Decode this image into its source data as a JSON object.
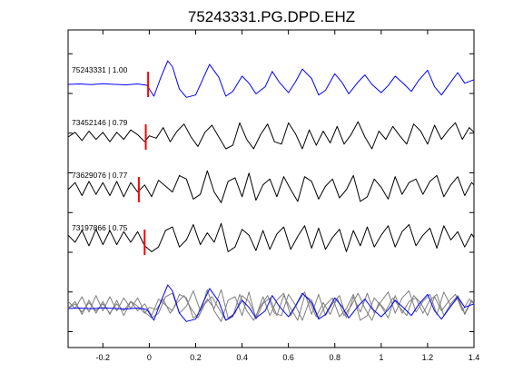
{
  "chart_data": {
    "type": "line",
    "title": "75243331.PG.DPD.EHZ",
    "xlabel": "",
    "ylabel": "",
    "xlim": [
      -0.35,
      1.4
    ],
    "xticks": [
      -0.2,
      0,
      0.2,
      0.4,
      0.6,
      0.8,
      1,
      1.2,
      1.4
    ],
    "xtick_labels": [
      "-0.2",
      "0",
      "0.2",
      "0.4",
      "0.6",
      "0.8",
      "1",
      "1.2",
      "1.4"
    ],
    "grid": false,
    "traces": [
      {
        "label": "75243331 | 1.00",
        "pick_time": -0.005,
        "color": "#0000ff",
        "description_values": {
          "x": [
            -0.35,
            -0.3,
            -0.25,
            -0.2,
            -0.15,
            -0.1,
            -0.05,
            -0.01,
            0.02,
            0.05,
            0.08,
            0.1,
            0.13,
            0.16,
            0.2,
            0.23,
            0.26,
            0.3,
            0.33,
            0.36,
            0.4,
            0.43,
            0.46,
            0.5,
            0.53,
            0.56,
            0.6,
            0.63,
            0.66,
            0.7,
            0.73,
            0.76,
            0.8,
            0.83,
            0.86,
            0.9,
            0.93,
            0.96,
            1.0,
            1.03,
            1.06,
            1.1,
            1.13,
            1.16,
            1.2,
            1.23,
            1.26,
            1.3,
            1.33,
            1.36,
            1.4
          ],
          "y": [
            0,
            0.02,
            -0.01,
            0.03,
            0,
            -0.02,
            0.02,
            -0.04,
            -0.5,
            0.3,
            1.0,
            0.75,
            -0.2,
            -0.55,
            -0.45,
            0.2,
            0.85,
            0.3,
            -0.5,
            -0.3,
            0.35,
            0.05,
            -0.4,
            -0.1,
            0.55,
            0.1,
            -0.35,
            0.1,
            0.65,
            0.25,
            -0.45,
            -0.25,
            0.45,
            0.1,
            -0.4,
            0.1,
            0.4,
            0.0,
            -0.35,
            -0.05,
            0.35,
            0.0,
            -0.3,
            0.15,
            0.6,
            -0.1,
            -0.45,
            0.1,
            0.5,
            0.05,
            0.2
          ]
        }
      },
      {
        "label": "73452146 | 0.79",
        "pick_time": -0.015,
        "color": "#000000",
        "description_values": {
          "x": [
            -0.35,
            -0.32,
            -0.29,
            -0.26,
            -0.23,
            -0.2,
            -0.17,
            -0.14,
            -0.11,
            -0.08,
            -0.05,
            -0.02,
            0.0,
            0.03,
            0.06,
            0.09,
            0.12,
            0.15,
            0.18,
            0.21,
            0.24,
            0.27,
            0.3,
            0.33,
            0.36,
            0.39,
            0.42,
            0.45,
            0.48,
            0.51,
            0.54,
            0.57,
            0.6,
            0.63,
            0.66,
            0.69,
            0.72,
            0.75,
            0.78,
            0.81,
            0.84,
            0.87,
            0.9,
            0.93,
            0.96,
            0.99,
            1.02,
            1.05,
            1.08,
            1.11,
            1.14,
            1.17,
            1.2,
            1.23,
            1.26,
            1.29,
            1.32,
            1.35,
            1.38,
            1.4
          ],
          "y": [
            0,
            0.2,
            -0.15,
            0.25,
            -0.1,
            0.2,
            -0.2,
            0.2,
            -0.1,
            0.3,
            0.1,
            -0.2,
            0.05,
            -0.05,
            0.4,
            -0.2,
            0.25,
            0.55,
            0.0,
            -0.4,
            0.2,
            0.5,
            0.0,
            -0.5,
            -0.35,
            0.6,
            -0.1,
            -0.5,
            0.1,
            0.55,
            -0.2,
            -0.3,
            0.6,
            0.15,
            -0.5,
            0.3,
            -0.35,
            0.25,
            -0.25,
            0.45,
            -0.3,
            0.1,
            0.65,
            0.0,
            -0.5,
            0.25,
            -0.1,
            0.45,
            0.05,
            -0.3,
            0.55,
            0.25,
            -0.3,
            0.5,
            -0.1,
            0.3,
            0.6,
            -0.1,
            0.4,
            0.2
          ]
        }
      },
      {
        "label": "73629076 | 0.77",
        "pick_time": -0.045,
        "color": "#000000",
        "description_values": {
          "x": [
            -0.35,
            -0.32,
            -0.29,
            -0.26,
            -0.23,
            -0.2,
            -0.17,
            -0.14,
            -0.11,
            -0.08,
            -0.05,
            -0.02,
            0.01,
            0.04,
            0.07,
            0.1,
            0.13,
            0.16,
            0.19,
            0.22,
            0.25,
            0.28,
            0.31,
            0.34,
            0.37,
            0.4,
            0.43,
            0.46,
            0.49,
            0.52,
            0.55,
            0.58,
            0.61,
            0.64,
            0.67,
            0.7,
            0.73,
            0.76,
            0.79,
            0.82,
            0.85,
            0.88,
            0.91,
            0.94,
            0.97,
            1.0,
            1.03,
            1.06,
            1.09,
            1.12,
            1.15,
            1.18,
            1.21,
            1.24,
            1.27,
            1.3,
            1.33,
            1.36,
            1.39,
            1.4
          ],
          "y": [
            0,
            0.3,
            -0.25,
            0.35,
            -0.2,
            0.3,
            -0.25,
            0.35,
            -0.3,
            0.3,
            -0.1,
            0.2,
            -0.3,
            0.4,
            0.15,
            -0.1,
            0.6,
            0.45,
            -0.4,
            -0.2,
            0.8,
            -0.1,
            -0.55,
            0.35,
            0.5,
            -0.3,
            0.7,
            -0.45,
            0.2,
            0.45,
            -0.3,
            0.55,
            0.0,
            -0.5,
            0.55,
            0.35,
            -0.4,
            0.15,
            0.45,
            -0.35,
            0.0,
            0.6,
            -0.5,
            -0.3,
            0.45,
            0.1,
            -0.4,
            0.55,
            -0.2,
            0.3,
            0.45,
            -0.2,
            0.35,
            0.6,
            -0.3,
            0.2,
            0.55,
            -0.25,
            0.3,
            0.2
          ]
        }
      },
      {
        "label": "73197866 | 0.75",
        "pick_time": -0.02,
        "color": "#000000",
        "description_values": {
          "x": [
            -0.35,
            -0.32,
            -0.29,
            -0.26,
            -0.23,
            -0.2,
            -0.17,
            -0.14,
            -0.11,
            -0.08,
            -0.05,
            -0.02,
            0.01,
            0.04,
            0.07,
            0.1,
            0.13,
            0.16,
            0.19,
            0.22,
            0.25,
            0.28,
            0.31,
            0.34,
            0.37,
            0.4,
            0.43,
            0.46,
            0.49,
            0.52,
            0.55,
            0.58,
            0.61,
            0.64,
            0.67,
            0.7,
            0.73,
            0.76,
            0.79,
            0.82,
            0.85,
            0.88,
            0.91,
            0.94,
            0.97,
            1.0,
            1.03,
            1.06,
            1.09,
            1.12,
            1.15,
            1.18,
            1.21,
            1.24,
            1.27,
            1.3,
            1.33,
            1.36,
            1.39,
            1.4
          ],
          "y": [
            0.3,
            0.0,
            0.5,
            -0.15,
            0.55,
            -0.1,
            0.5,
            -0.1,
            0.45,
            0.0,
            0.45,
            -0.15,
            -0.4,
            -0.2,
            0.5,
            0.65,
            -0.2,
            0.1,
            0.75,
            -0.1,
            0.4,
            0.0,
            0.8,
            -0.4,
            -0.2,
            0.55,
            0.3,
            -0.35,
            0.5,
            -0.3,
            0.35,
            0.65,
            -0.3,
            0.25,
            0.7,
            -0.25,
            0.6,
            -0.3,
            0.2,
            0.55,
            -0.4,
            0.5,
            -0.15,
            0.65,
            -0.2,
            0.3,
            0.7,
            -0.2,
            0.45,
            0.75,
            -0.15,
            0.3,
            0.6,
            -0.25,
            0.7,
            0.1,
            0.45,
            -0.2,
            0.35,
            0.2
          ]
        }
      }
    ],
    "stack_note_series": [
      "75243331 | 1.00",
      "73452146 | 0.79",
      "73629076 | 0.77",
      "73197866 | 0.75"
    ]
  }
}
